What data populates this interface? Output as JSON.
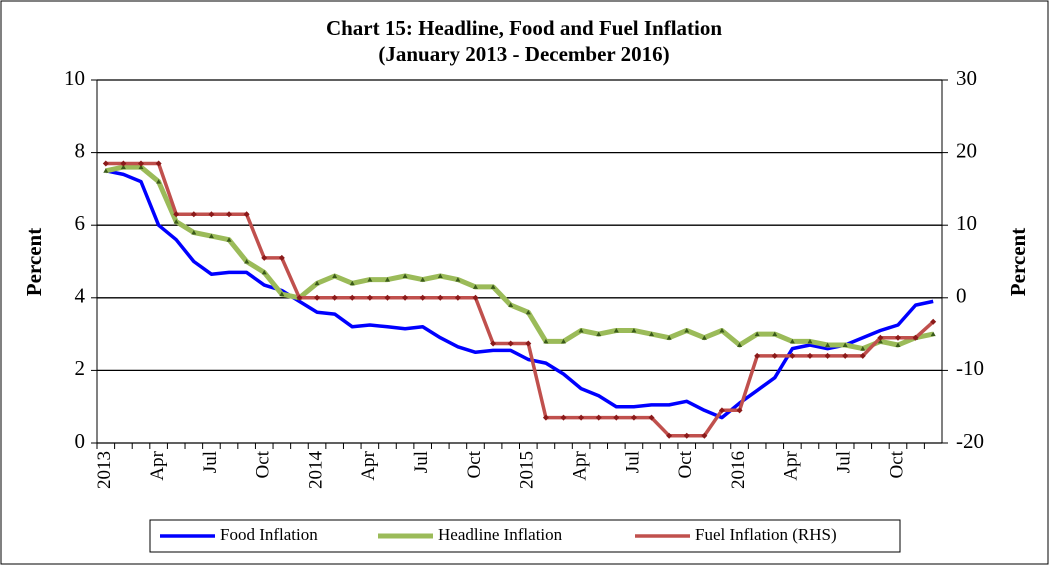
{
  "chart_data": {
    "type": "line",
    "title": "Chart 15: Headline, Food and Fuel Inflation",
    "subtitle": "(January 2013 - December 2016)",
    "y_label": "Percent",
    "y2_label": "Percent",
    "categories": [
      "2013",
      null,
      null,
      "Apr",
      null,
      null,
      "Jul",
      null,
      null,
      "Oct",
      null,
      null,
      "2014",
      null,
      null,
      "Apr",
      null,
      null,
      "Jul",
      null,
      null,
      "Oct",
      null,
      null,
      "2015",
      null,
      null,
      "Apr",
      null,
      null,
      "Jul",
      null,
      null,
      "Oct",
      null,
      null,
      "2016",
      null,
      null,
      "Apr",
      null,
      null,
      "Jul",
      null,
      null,
      "Oct",
      null,
      null
    ],
    "ylim": [
      0,
      10
    ],
    "yticks": [
      0,
      2,
      4,
      6,
      8,
      10
    ],
    "y2lim": [
      -20,
      30
    ],
    "y2ticks": [
      -20,
      -10,
      0,
      10,
      20,
      30
    ],
    "grid": true,
    "legend": "bottom",
    "series": [
      {
        "name": "Food Inflation",
        "color": "#0000ff",
        "values": [
          7.5,
          7.4,
          7.2,
          6.0,
          5.6,
          5.0,
          4.65,
          4.7,
          4.7,
          4.35,
          4.2,
          3.9,
          3.6,
          3.55,
          3.2,
          3.25,
          3.2,
          3.15,
          3.2,
          2.9,
          2.65,
          2.5,
          2.55,
          2.55,
          2.3,
          2.2,
          1.9,
          1.5,
          1.3,
          1.0,
          1.0,
          1.05,
          1.05,
          1.15,
          0.9,
          0.7,
          1.1,
          1.45,
          1.8,
          2.6,
          2.7,
          2.6,
          2.7,
          2.9,
          3.1,
          3.25,
          3.8,
          3.9
        ]
      },
      {
        "name": "Headline Inflation",
        "color": "#9bbb59",
        "values": [
          7.5,
          7.6,
          7.6,
          7.2,
          6.1,
          5.8,
          5.7,
          5.6,
          5.0,
          4.7,
          4.1,
          4.0,
          4.4,
          4.6,
          4.4,
          4.5,
          4.5,
          4.6,
          4.5,
          4.6,
          4.5,
          4.3,
          4.3,
          3.8,
          3.6,
          2.8,
          2.8,
          3.1,
          3.0,
          3.1,
          3.1,
          3.0,
          2.9,
          3.1,
          2.9,
          3.1,
          2.7,
          3.0,
          3.0,
          2.8,
          2.8,
          2.7,
          2.7,
          2.6,
          2.8,
          2.7,
          2.9,
          3.0
        ]
      },
      {
        "name": "Fuel Inflation (RHS)",
        "color": "#c0504d",
        "axis": "y2",
        "values": [
          18.5,
          18.5,
          18.5,
          18.5,
          11.5,
          11.5,
          11.5,
          11.5,
          11.5,
          5.5,
          5.5,
          0,
          0,
          0,
          0,
          0,
          0,
          0,
          0,
          0,
          0,
          0,
          -6.3,
          -6.3,
          -6.3,
          -16.5,
          -16.5,
          -16.5,
          -16.5,
          -16.5,
          -16.5,
          -16.5,
          -19,
          -19,
          -19,
          -15.5,
          -15.5,
          -8,
          -8,
          -8,
          -8,
          -8,
          -8,
          -8,
          -5.5,
          -5.5,
          -5.5,
          -3.3
        ]
      }
    ]
  }
}
